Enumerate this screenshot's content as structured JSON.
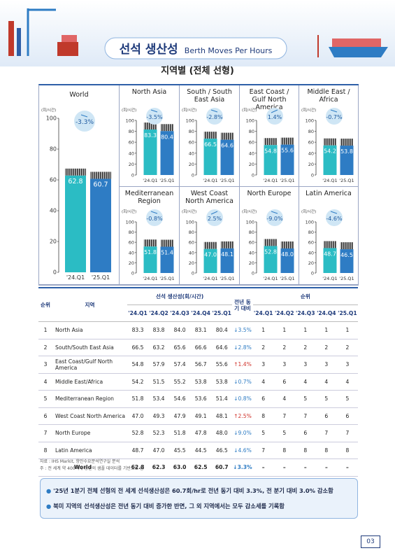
{
  "header": {
    "title": "선석 생산성",
    "subtitle": "Berth Moves Per Hours"
  },
  "section_title": "지역별 (전체 선형)",
  "chart_data": [
    {
      "type": "bar",
      "title": "World",
      "y_label": "(회/시간)",
      "annotation": "-3.3%",
      "categories": [
        "'24.Q1",
        "'25.Q1"
      ],
      "values": [
        62.8,
        60.7
      ],
      "colors": [
        "#2bbcc4",
        "#2e7cc4"
      ],
      "ylim": [
        0,
        100
      ],
      "yticks": [
        0,
        20,
        40,
        60,
        80,
        100
      ]
    },
    {
      "type": "bar",
      "title": "North Asia",
      "y_label": "(회/시간)",
      "annotation": "-3.5%",
      "categories": [
        "'24.Q1",
        "'25.Q1"
      ],
      "values": [
        83.3,
        80.4
      ],
      "colors": [
        "#2bbcc4",
        "#2e7cc4"
      ],
      "ylim": [
        0,
        100
      ],
      "yticks": [
        0,
        20,
        40,
        60,
        80,
        100
      ]
    },
    {
      "type": "bar",
      "title": "South / South East Asia",
      "y_label": "(회/시간)",
      "annotation": "-2.8%",
      "categories": [
        "'24.Q1",
        "'25.Q1"
      ],
      "values": [
        66.5,
        64.6
      ],
      "colors": [
        "#2bbcc4",
        "#2e7cc4"
      ],
      "ylim": [
        0,
        100
      ],
      "yticks": [
        0,
        20,
        40,
        60,
        80,
        100
      ]
    },
    {
      "type": "bar",
      "title": "East Coast / Gulf North America",
      "y_label": "(회/시간)",
      "annotation": "1.4%",
      "categories": [
        "'24.Q1",
        "'25.Q1"
      ],
      "values": [
        54.8,
        55.6
      ],
      "colors": [
        "#2bbcc4",
        "#2e7cc4"
      ],
      "ylim": [
        0,
        100
      ],
      "yticks": [
        0,
        20,
        40,
        60,
        80,
        100
      ]
    },
    {
      "type": "bar",
      "title": "Middle East / Africa",
      "y_label": "(회/시간)",
      "annotation": "-0.7%",
      "categories": [
        "'24.Q1",
        "'25.Q1"
      ],
      "values": [
        54.2,
        53.8
      ],
      "colors": [
        "#2bbcc4",
        "#2e7cc4"
      ],
      "ylim": [
        0,
        100
      ],
      "yticks": [
        0,
        20,
        40,
        60,
        80,
        100
      ]
    },
    {
      "type": "bar",
      "title": "Mediterranean Region",
      "y_label": "(회/시간)",
      "annotation": "-0.8%",
      "categories": [
        "'24.Q1",
        "'25.Q1"
      ],
      "values": [
        51.8,
        51.4
      ],
      "colors": [
        "#2bbcc4",
        "#2e7cc4"
      ],
      "ylim": [
        0,
        100
      ],
      "yticks": [
        0,
        20,
        40,
        60,
        80,
        100
      ]
    },
    {
      "type": "bar",
      "title": "West Coast North America",
      "y_label": "(회/시간)",
      "annotation": "2.5%",
      "categories": [
        "'24.Q1",
        "'25.Q1"
      ],
      "values": [
        47.0,
        48.1
      ],
      "value_labels": [
        "47.0",
        "48.1"
      ],
      "colors": [
        "#2bbcc4",
        "#2e7cc4"
      ],
      "ylim": [
        0,
        100
      ],
      "yticks": [
        0,
        20,
        40,
        60,
        80,
        100
      ]
    },
    {
      "type": "bar",
      "title": "North Europe",
      "y_label": "(회/시간)",
      "annotation": "-9.0%",
      "categories": [
        "'24.Q1",
        "'25.Q1"
      ],
      "values": [
        52.8,
        48.0
      ],
      "value_labels": [
        "52.8",
        "48.0"
      ],
      "colors": [
        "#2bbcc4",
        "#2e7cc4"
      ],
      "ylim": [
        0,
        100
      ],
      "yticks": [
        0,
        20,
        40,
        60,
        80,
        100
      ]
    },
    {
      "type": "bar",
      "title": "Latin America",
      "y_label": "(회/시간)",
      "annotation": "-4.6%",
      "categories": [
        "'24.Q1",
        "'25.Q1"
      ],
      "values": [
        48.7,
        46.5
      ],
      "colors": [
        "#2bbcc4",
        "#2e7cc4"
      ],
      "ylim": [
        0,
        100
      ],
      "yticks": [
        0,
        20,
        40,
        60,
        80,
        100
      ]
    }
  ],
  "table": {
    "rank_header": "순위",
    "region_header": "지역",
    "productivity_header": "선석 생산성(회/시간)",
    "change_header": "전년 동기 대비",
    "rank_group_header": "순위",
    "quarters": [
      "'24.Q1",
      "'24.Q2",
      "'24.Q3",
      "'24.Q4",
      "'25.Q1"
    ],
    "rows": [
      [
        "1",
        "North Asia",
        "83.3",
        "83.8",
        "84.0",
        "83.1",
        "80.4",
        "↓3.5%",
        "1",
        "1",
        "1",
        "1",
        "1"
      ],
      [
        "2",
        "South/South East Asia",
        "66.5",
        "63.2",
        "65.6",
        "66.6",
        "64.6",
        "↓2.8%",
        "2",
        "2",
        "2",
        "2",
        "2"
      ],
      [
        "3",
        "East Coast/Gulf North America",
        "54.8",
        "57.9",
        "57.4",
        "56.7",
        "55.6",
        "↑1.4%",
        "3",
        "3",
        "3",
        "3",
        "3"
      ],
      [
        "4",
        "Middle East/Africa",
        "54.2",
        "51.5",
        "55.2",
        "53.8",
        "53.8",
        "↓0.7%",
        "4",
        "6",
        "4",
        "4",
        "4"
      ],
      [
        "5",
        "Mediterranean Region",
        "51.8",
        "53.4",
        "54.6",
        "53.6",
        "51.4",
        "↓0.8%",
        "6",
        "4",
        "5",
        "5",
        "5"
      ],
      [
        "6",
        "West Coast North America",
        "47.0",
        "49.3",
        "47.9",
        "49.1",
        "48.1",
        "↑2.5%",
        "8",
        "7",
        "7",
        "6",
        "6"
      ],
      [
        "7",
        "North Europe",
        "52.8",
        "52.3",
        "51.8",
        "47.8",
        "48.0",
        "↓9.0%",
        "5",
        "5",
        "6",
        "7",
        "7"
      ],
      [
        "8",
        "Latin America",
        "48.7",
        "47.0",
        "45.5",
        "44.5",
        "46.5",
        "↓4.6%",
        "7",
        "8",
        "8",
        "8",
        "8"
      ]
    ],
    "total": [
      "World",
      "62.8",
      "62.3",
      "63.0",
      "62.5",
      "60.7",
      "↓3.3%",
      "–",
      "–",
      "–",
      "–",
      "–"
    ]
  },
  "notes": [
    "자료 : IHS Markit, 항만수요분석연구실 분석",
    "주   : 전 세계 약 400여개 항만의 샘플 데이터를 기반으로 함"
  ],
  "summary": [
    "'25년 1분기 전체 선형의 전 세계 선석생산성은 60.7회/hr로 전년 동기 대비 3.3%, 전 분기 대비 3.0% 감소함",
    "북미 지역의 선석생산성은 전년 동기 대비 증가한 반면, 그 외 지역에서는 모두 감소세를 기록함"
  ],
  "page_number": "03"
}
